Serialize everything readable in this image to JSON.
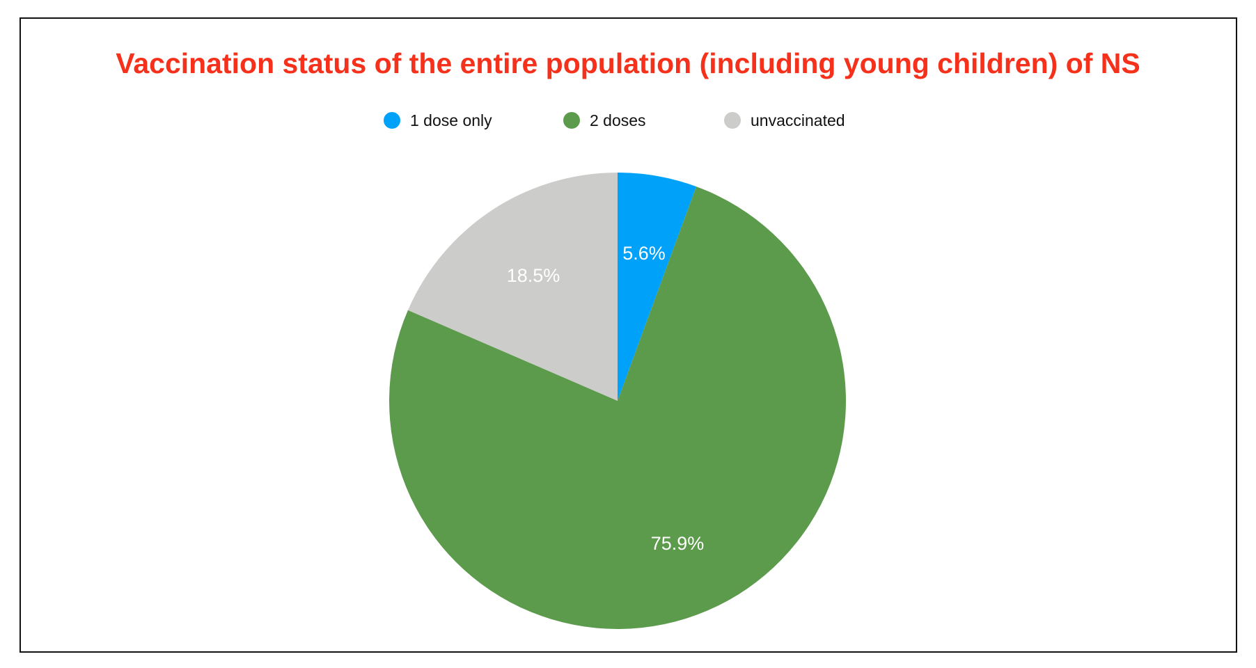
{
  "chart_data": {
    "type": "pie",
    "title": "Vaccination status of the entire population (including young children) of NS",
    "legend_position": "top",
    "slices": [
      {
        "label": "1 dose only",
        "value": 5.6,
        "display": "5.6%",
        "color": "#00a2f9"
      },
      {
        "label": "2 doses",
        "value": 75.9,
        "display": "75.9%",
        "color": "#5d9b4c"
      },
      {
        "label": "unvaccinated",
        "value": 18.5,
        "display": "18.5%",
        "color": "#cccccb"
      }
    ]
  }
}
